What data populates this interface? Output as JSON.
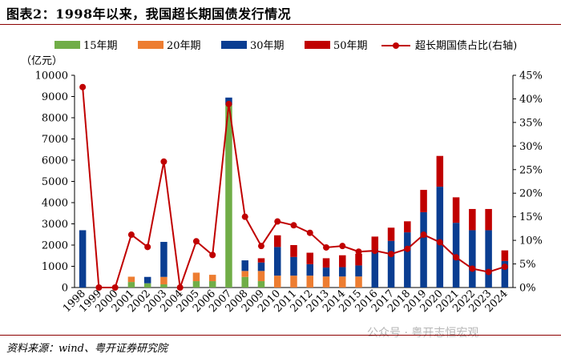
{
  "header": {
    "title": "图表2：1998年以来，我国超长期国债发行情况"
  },
  "footer": {
    "source": "资料来源：wind、粤开证券研究院",
    "watermark": "公众号 · 粤开志恒宏观"
  },
  "colors": {
    "s15": "#70ad47",
    "s20": "#ed7d31",
    "s30": "#0a3d91",
    "s50": "#c00000",
    "ratio": "#c00000",
    "axis": "#000000"
  },
  "chart_data": {
    "type": "bar",
    "stacked": true,
    "title": "",
    "ylabel": "（亿元）",
    "y2label": "",
    "ylim": [
      0,
      10000
    ],
    "y2lim": [
      0,
      0.45
    ],
    "y_ticks": [
      "0",
      "1000",
      "2000",
      "3000",
      "4000",
      "5000",
      "6000",
      "7000",
      "8000",
      "9000",
      "10000"
    ],
    "y2_ticks": [
      "0%",
      "5%",
      "10%",
      "15%",
      "20%",
      "25%",
      "30%",
      "35%",
      "40%",
      "45%"
    ],
    "categories": [
      "1998",
      "1999",
      "2000",
      "2001",
      "2002",
      "2003",
      "2004",
      "2005",
      "2006",
      "2007",
      "2008",
      "2009",
      "2010",
      "2011",
      "2012",
      "2013",
      "2014",
      "2015",
      "2016",
      "2017",
      "2018",
      "2019",
      "2020",
      "2021",
      "2022",
      "2023",
      "2024"
    ],
    "series": [
      {
        "name": "15年期",
        "key": "s15",
        "values": [
          0,
          0,
          0,
          260,
          200,
          150,
          0,
          300,
          300,
          8600,
          500,
          300,
          0,
          0,
          0,
          0,
          0,
          0,
          0,
          0,
          0,
          0,
          0,
          0,
          0,
          0,
          0
        ]
      },
      {
        "name": "20年期",
        "key": "s20",
        "values": [
          0,
          0,
          0,
          250,
          0,
          350,
          0,
          400,
          300,
          0,
          280,
          480,
          560,
          560,
          560,
          520,
          520,
          520,
          0,
          0,
          0,
          0,
          0,
          0,
          0,
          0,
          0
        ]
      },
      {
        "name": "30年期",
        "key": "s30",
        "values": [
          2700,
          0,
          0,
          0,
          300,
          1650,
          0,
          0,
          0,
          350,
          500,
          400,
          1350,
          880,
          540,
          420,
          440,
          520,
          1800,
          2200,
          2600,
          3550,
          4750,
          3050,
          2700,
          2700,
          1250
        ]
      },
      {
        "name": "50年期",
        "key": "s50",
        "values": [
          0,
          0,
          0,
          0,
          0,
          0,
          0,
          0,
          0,
          0,
          0,
          200,
          550,
          560,
          540,
          440,
          560,
          550,
          600,
          620,
          520,
          1050,
          1450,
          1200,
          1000,
          1000,
          500
        ]
      }
    ],
    "line": {
      "name": "超长期国债占比(右轴)",
      "key": "ratio",
      "values": [
        0.425,
        0.0,
        0.0,
        0.112,
        0.086,
        0.267,
        0.0,
        0.098,
        0.069,
        0.389,
        0.15,
        0.088,
        0.14,
        0.132,
        0.116,
        0.085,
        0.088,
        0.076,
        0.078,
        0.071,
        0.082,
        0.112,
        0.096,
        0.064,
        0.04,
        0.033,
        0.044
      ]
    },
    "legend_position": "top",
    "grid": false
  }
}
